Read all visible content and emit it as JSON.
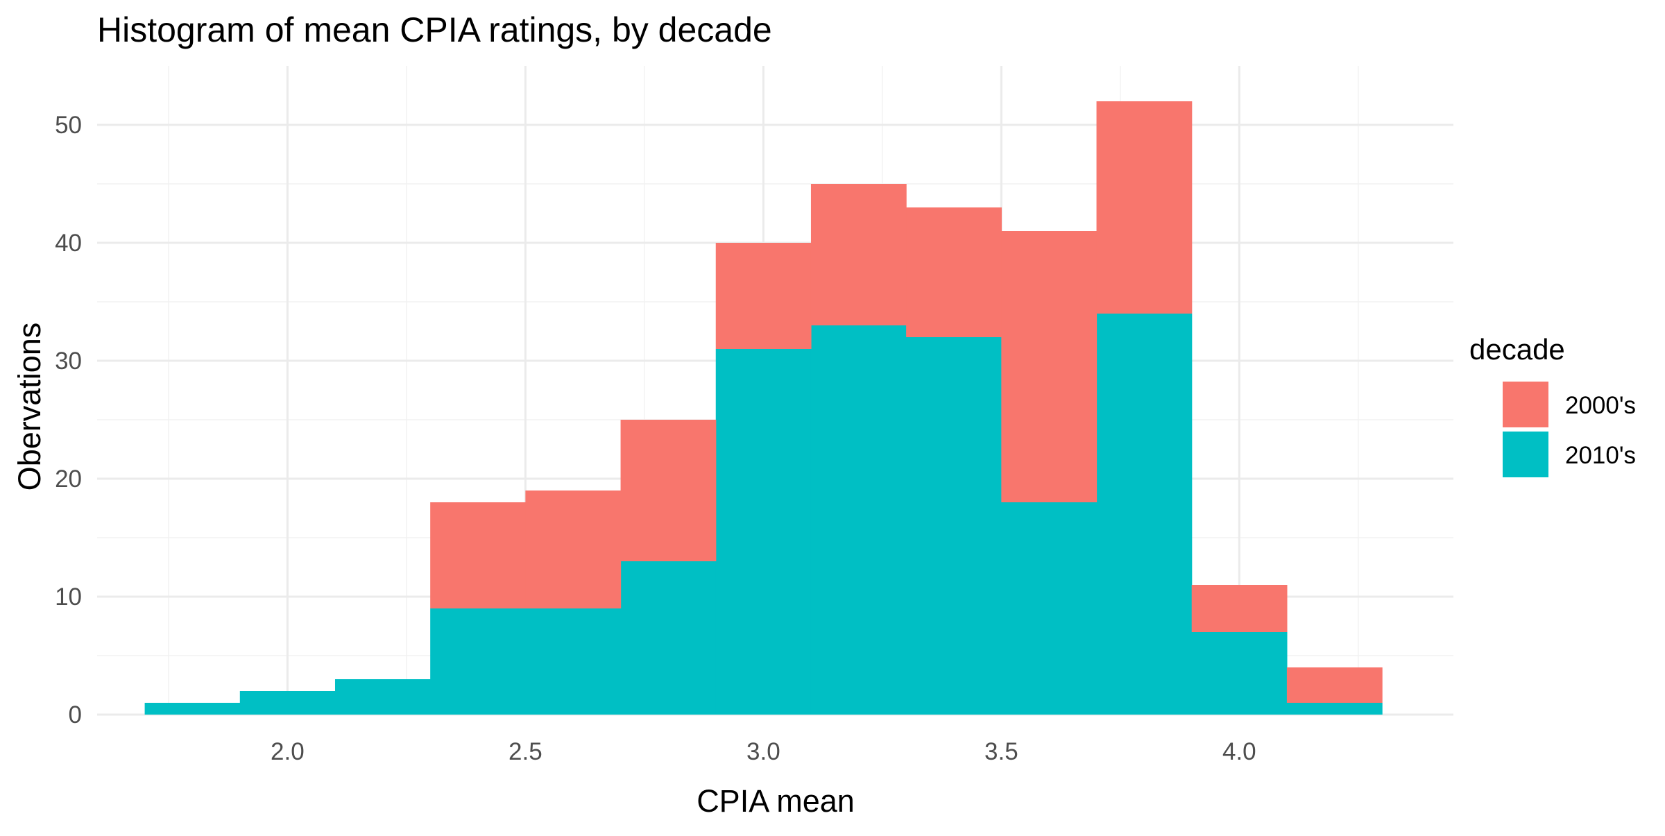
{
  "chart_data": {
    "type": "bar",
    "stacked": true,
    "title": "Histogram of mean CPIA ratings, by decade",
    "xlabel": "CPIA mean",
    "ylabel": "Obervations",
    "xlim": [
      1.6,
      4.45
    ],
    "ylim": [
      0,
      55
    ],
    "x_ticks": [
      2.0,
      2.5,
      3.0,
      3.5,
      4.0
    ],
    "x_tick_labels": [
      "2.0",
      "2.5",
      "3.0",
      "3.5",
      "4.0"
    ],
    "y_ticks": [
      0,
      10,
      20,
      30,
      40,
      50
    ],
    "y_tick_labels": [
      "0",
      "10",
      "20",
      "30",
      "40",
      "50"
    ],
    "bin_width": 0.2,
    "bin_centers": [
      1.8,
      2.0,
      2.2,
      2.4,
      2.6,
      2.8,
      3.0,
      3.2,
      3.4,
      3.6,
      3.8,
      4.0,
      4.2
    ],
    "series": [
      {
        "name": "2010's",
        "color": "#00bfc4",
        "values": [
          1,
          2,
          3,
          9,
          9,
          13,
          31,
          33,
          32,
          18,
          34,
          7,
          1
        ]
      },
      {
        "name": "2000's",
        "color": "#f8766d",
        "values": [
          0,
          0,
          0,
          9,
          10,
          12,
          9,
          12,
          11,
          23,
          18,
          4,
          3
        ]
      }
    ],
    "legend": {
      "title": "decade",
      "position": "right",
      "entries": [
        {
          "label": "2000's",
          "color": "#f8766d"
        },
        {
          "label": "2010's",
          "color": "#00bfc4"
        }
      ]
    },
    "grid": true
  }
}
